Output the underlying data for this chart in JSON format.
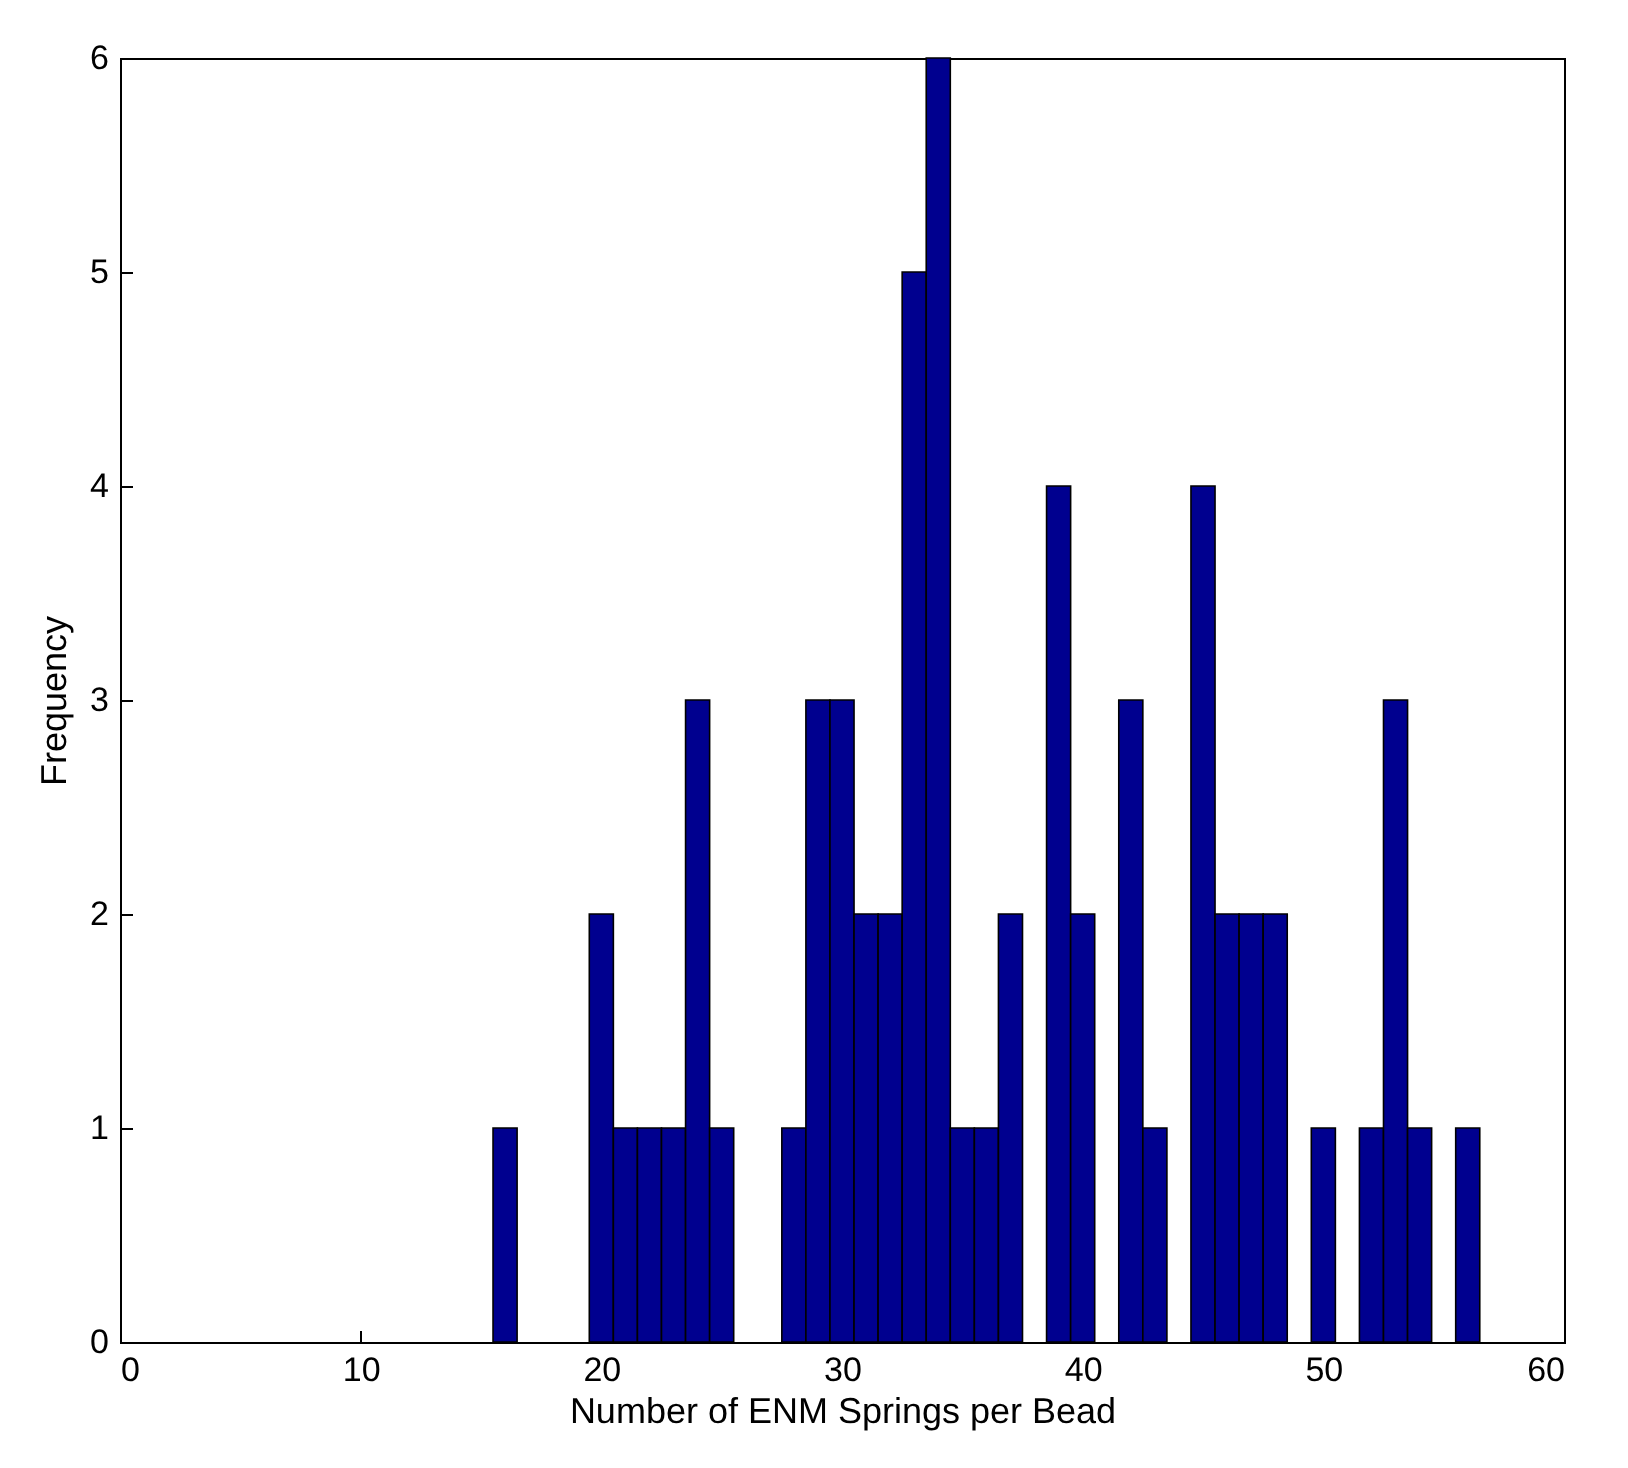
{
  "chart_data": {
    "type": "histogram",
    "xlabel": "Number of ENM Springs per Bead",
    "ylabel": "Frequency",
    "bins": [
      15.5,
      16.5,
      17.5,
      18.5,
      19.5,
      20.5,
      21.5,
      22.5,
      23.5,
      24.5,
      25.5,
      26.5,
      27.5,
      28.5,
      29.5,
      30.5,
      31.5,
      32.5,
      33.5,
      34.5,
      35.5,
      36.5,
      37.5,
      38.5,
      39.5,
      40.5,
      41.5,
      42.5,
      43.5,
      44.5,
      45.5,
      46.5,
      47.5,
      48.5,
      49.5,
      50.5,
      51.5,
      52.5,
      53.5,
      54.5,
      55.5,
      56.5
    ],
    "values": [
      1,
      0,
      0,
      0,
      2,
      1,
      1,
      1,
      3,
      1,
      0,
      0,
      1,
      3,
      3,
      2,
      2,
      5,
      6,
      1,
      1,
      2,
      0,
      4,
      2,
      0,
      3,
      1,
      0,
      4,
      2,
      2,
      2,
      0,
      1,
      0,
      1,
      3,
      1,
      0,
      1
    ],
    "color": "#00008f",
    "xlim": [
      0,
      60
    ],
    "xticks": [
      0,
      10,
      20,
      30,
      40,
      50,
      60
    ],
    "ylim": [
      0,
      6
    ],
    "yticks": [
      0,
      1,
      2,
      3,
      4,
      5,
      6
    ],
    "grid": false
  }
}
